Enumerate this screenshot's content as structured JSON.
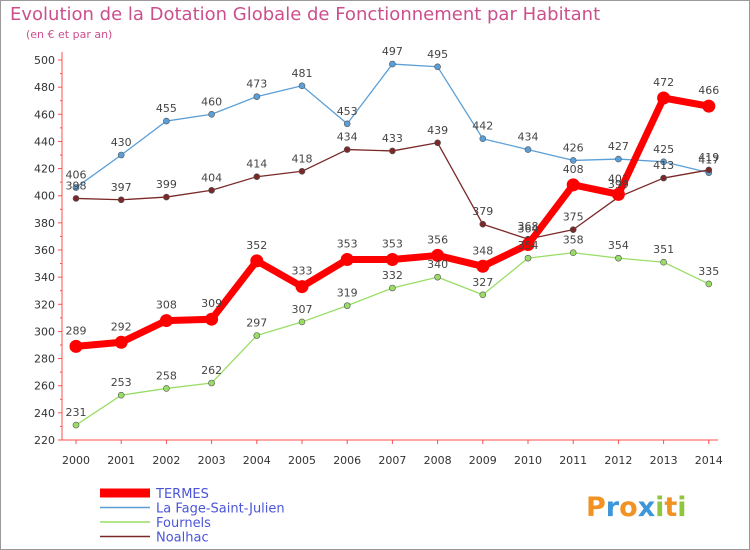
{
  "chart_data": {
    "type": "line",
    "title": "Evolution de la Dotation Globale de Fonctionnement par Habitant",
    "subtitle": "(en € et par an)",
    "xlabel": "",
    "ylabel": "",
    "x": [
      "2000",
      "2001",
      "2002",
      "2003",
      "2004",
      "2005",
      "2006",
      "2007",
      "2008",
      "2009",
      "2010",
      "2011",
      "2012",
      "2013",
      "2014"
    ],
    "ylim": [
      220,
      500
    ],
    "yticks": [
      220,
      240,
      260,
      280,
      300,
      320,
      340,
      360,
      380,
      400,
      420,
      440,
      460,
      480,
      500
    ],
    "grid": false,
    "legend_position": "bottom-left",
    "series": [
      {
        "name": "TERMES",
        "color": "#ff0000",
        "values": [
          289,
          292,
          308,
          309,
          352,
          333,
          353,
          353,
          356,
          348,
          364,
          408,
          401,
          472,
          466
        ]
      },
      {
        "name": "La Fage-Saint-Julien",
        "color": "#5b9fd6",
        "values": [
          406,
          430,
          455,
          460,
          473,
          481,
          453,
          497,
          495,
          442,
          434,
          426,
          427,
          425,
          417
        ]
      },
      {
        "name": "Fournels",
        "color": "#99dd66",
        "values": [
          231,
          253,
          258,
          262,
          297,
          307,
          319,
          332,
          340,
          327,
          354,
          358,
          354,
          351,
          335
        ]
      },
      {
        "name": "Noalhac",
        "color": "#7a2828",
        "values": [
          398,
          397,
          399,
          404,
          414,
          418,
          434,
          433,
          439,
          379,
          368,
          375,
          399,
          413,
          419
        ]
      }
    ]
  },
  "logo": {
    "letters": [
      "P",
      "r",
      "o",
      "x",
      "i",
      "t",
      "i"
    ],
    "colors": [
      "#f29222",
      "#3d96d8",
      "#f29222",
      "#3d96d8",
      "#8dc63f",
      "#f29222",
      "#8dc63f"
    ]
  }
}
